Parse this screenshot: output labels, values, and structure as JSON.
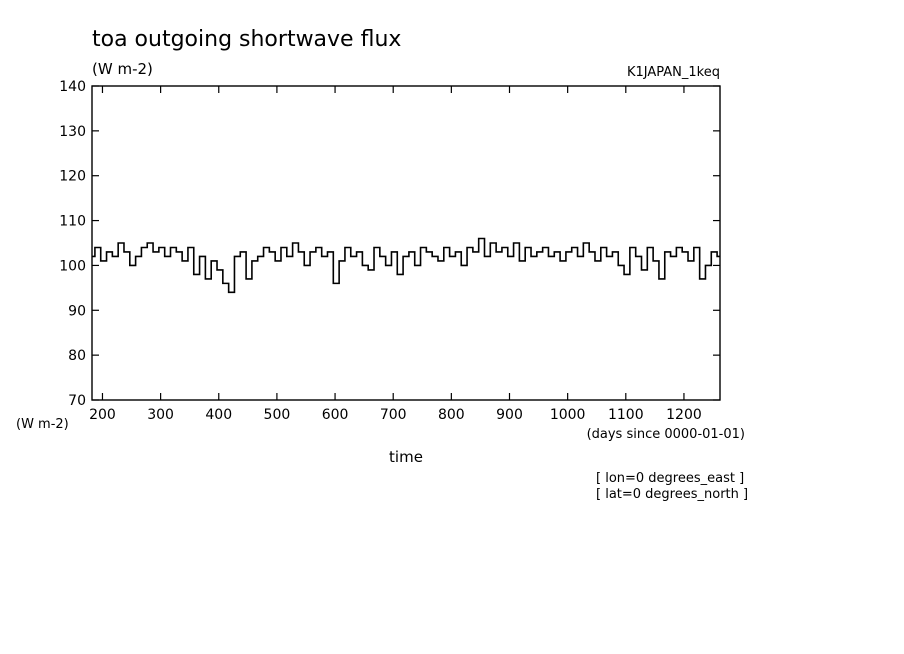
{
  "chart_data": {
    "type": "line",
    "title": "toa outgoing shortwave flux",
    "units_label": "(W m-2)",
    "dataset_label": "K1JAPAN_1keq",
    "ylabel": "(W m-2)",
    "xlabel": "time",
    "x_units_label": "(days since 0000-01-01)",
    "annotations": [
      "[ lon=0 degrees_east ]",
      "[ lat=0 degrees_north ]"
    ],
    "xlim": [
      182,
      1262
    ],
    "ylim": [
      70,
      140
    ],
    "x_ticks": [
      200,
      300,
      400,
      500,
      600,
      700,
      800,
      900,
      1000,
      1100,
      1200
    ],
    "x_tick_labels": [
      "200",
      "300",
      "400",
      "500",
      "600",
      "700",
      "800",
      "900",
      "1000",
      "1100",
      "1200"
    ],
    "y_ticks": [
      70,
      80,
      90,
      100,
      110,
      120,
      130,
      140
    ],
    "y_tick_labels": [
      "70",
      "80",
      "90",
      "100",
      "110",
      "120",
      "130",
      "140"
    ],
    "grid": false,
    "legend": "none",
    "series": [
      {
        "color": "#000000",
        "x": [
          182,
          192,
          202,
          212,
          222,
          232,
          242,
          252,
          262,
          272,
          282,
          292,
          302,
          312,
          322,
          332,
          342,
          352,
          362,
          372,
          382,
          392,
          402,
          412,
          422,
          432,
          442,
          452,
          462,
          472,
          482,
          492,
          502,
          512,
          522,
          532,
          542,
          552,
          562,
          572,
          582,
          592,
          602,
          612,
          622,
          632,
          642,
          652,
          662,
          672,
          682,
          692,
          702,
          712,
          722,
          732,
          742,
          752,
          762,
          772,
          782,
          792,
          802,
          812,
          822,
          832,
          842,
          852,
          862,
          872,
          882,
          892,
          902,
          912,
          922,
          932,
          942,
          952,
          962,
          972,
          982,
          992,
          1002,
          1012,
          1022,
          1032,
          1042,
          1052,
          1062,
          1072,
          1082,
          1092,
          1102,
          1112,
          1122,
          1132,
          1142,
          1152,
          1162,
          1172,
          1182,
          1192,
          1202,
          1212,
          1222,
          1232,
          1242,
          1252,
          1262
        ],
        "y": [
          102,
          104,
          101,
          103,
          102,
          105,
          103,
          100,
          102,
          104,
          105,
          103,
          104,
          102,
          104,
          103,
          101,
          104,
          98,
          102,
          97,
          101,
          99,
          96,
          94,
          102,
          103,
          97,
          101,
          102,
          104,
          103,
          101,
          104,
          102,
          105,
          103,
          100,
          103,
          104,
          102,
          103,
          96,
          101,
          104,
          102,
          103,
          100,
          99,
          104,
          102,
          100,
          103,
          98,
          102,
          103,
          100,
          104,
          103,
          102,
          101,
          104,
          102,
          103,
          100,
          104,
          103,
          106,
          102,
          105,
          103,
          104,
          102,
          105,
          101,
          104,
          102,
          103,
          104,
          102,
          103,
          101,
          103,
          104,
          102,
          105,
          103,
          101,
          104,
          102,
          103,
          100,
          98,
          104,
          102,
          99,
          104,
          101,
          97,
          103,
          102,
          104,
          103,
          101,
          104,
          97,
          100,
          103,
          102
        ]
      }
    ]
  }
}
